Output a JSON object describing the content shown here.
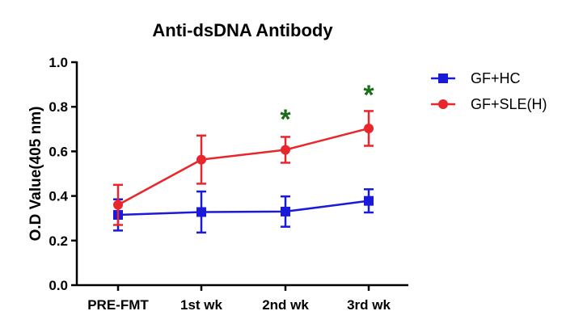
{
  "chart_data": {
    "type": "line",
    "title": "Anti-dsDNA Antibody",
    "xlabel": "",
    "ylabel": "O.D Value(405 nm)",
    "categories": [
      "PRE-FMT",
      "1st wk",
      "2nd wk",
      "3rd wk"
    ],
    "ylim": [
      0,
      1.0
    ],
    "yticks": [
      "0.0",
      "0.2",
      "0.4",
      "0.6",
      "0.8",
      "1.0"
    ],
    "grid": false,
    "legend_position": "top-right",
    "series": [
      {
        "name": "GF+HC",
        "color": "#1a1adb",
        "marker": "square",
        "values": [
          0.315,
          0.328,
          0.33,
          0.378
        ],
        "errors": [
          0.07,
          0.092,
          0.068,
          0.052
        ]
      },
      {
        "name": "GF+SLE(H)",
        "color": "#e8262b",
        "marker": "circle",
        "values": [
          0.36,
          0.563,
          0.607,
          0.703
        ],
        "errors": [
          0.09,
          0.108,
          0.058,
          0.078
        ]
      }
    ],
    "annotations": [
      {
        "category": "2nd wk",
        "text": "*",
        "y": 0.76,
        "color": "#1a6e1a"
      },
      {
        "category": "3rd wk",
        "text": "*",
        "y": 0.87,
        "color": "#1a6e1a"
      }
    ]
  }
}
